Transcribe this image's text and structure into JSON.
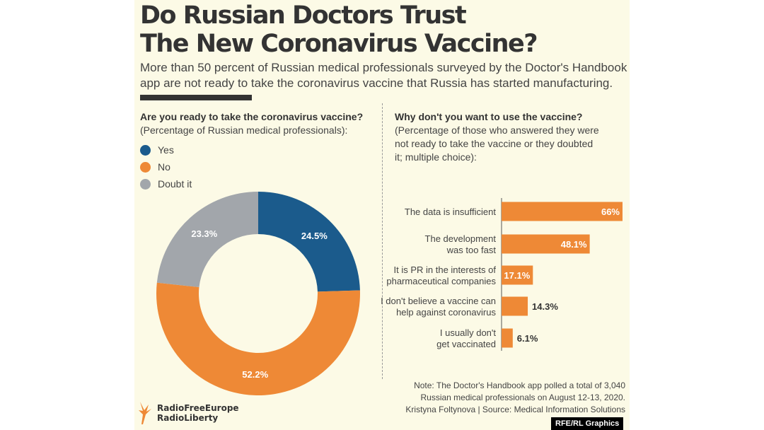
{
  "title": [
    "Do Russian Doctors Trust",
    "The New Coronavirus Vaccine?"
  ],
  "subtitle": "More than 50 percent of Russian medical professionals surveyed by the Doctor's Handbook app are not ready to take the coronavirus vaccine that Russia has started manufacturing.",
  "chart_data": [
    {
      "type": "pie",
      "variant": "donut",
      "title": "Are you ready to take the coronavirus vaccine?",
      "subtitle": "(Percentage of Russian medical professionals):",
      "categories": [
        "Yes",
        "No",
        "Doubt it"
      ],
      "values": [
        24.5,
        52.2,
        23.3
      ],
      "labels": [
        "24.5%",
        "52.2%",
        "23.3%"
      ],
      "colors": [
        "#1b5b8c",
        "#ee8936",
        "#a2a6ab"
      ],
      "legend": "top-left"
    },
    {
      "type": "bar",
      "orientation": "horizontal",
      "title": "Why don't you want to use the vaccine?",
      "subtitle": "(Percentage of those who answered they were not ready to take the vaccine or they doubted it; multiple choice):",
      "categories": [
        [
          "The data is insufficient"
        ],
        [
          "The development",
          "was too fast"
        ],
        [
          "It is PR in the interests of",
          "pharmaceutical companies"
        ],
        [
          "I don't believe a vaccine can",
          "help against coronavirus"
        ],
        [
          "I usually don't",
          "get vaccinated"
        ]
      ],
      "values": [
        66,
        48.1,
        17.1,
        14.3,
        6.1
      ],
      "labels": [
        "66%",
        "48.1%",
        "17.1%",
        "14.3%",
        "6.1%"
      ],
      "color": "#ee8936",
      "xlim": [
        0,
        66
      ]
    }
  ],
  "note": [
    "Note: The Doctor's Handbook app polled a total of 3,040",
    "Russian medical professionals on August 12-13, 2020.",
    "Kristyna Foltynova | Source: Medical Information Solutions"
  ],
  "logo": [
    "RadioFreeEurope",
    "RadioLiberty"
  ],
  "badge": "RFE/RL Graphics"
}
